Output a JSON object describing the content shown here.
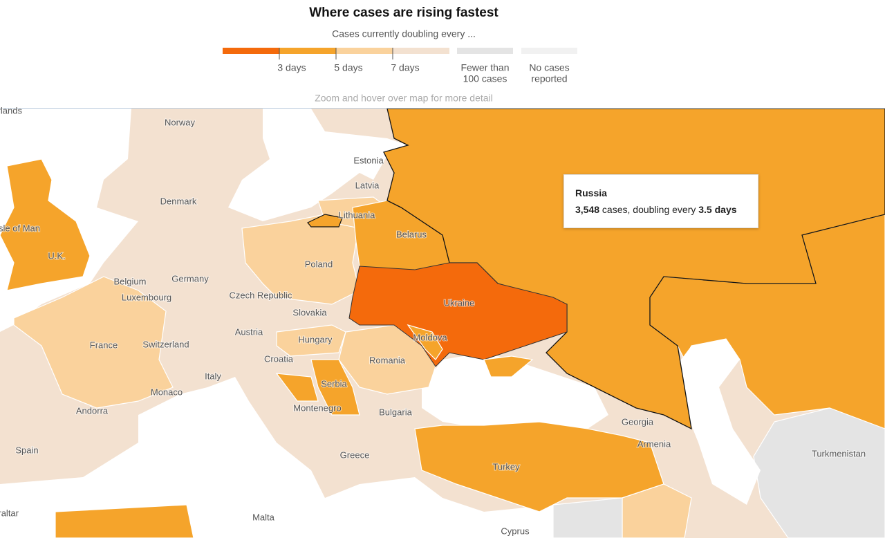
{
  "header": {
    "title": "Where cases are rising fastest",
    "subtitle": "Cases currently doubling every ...",
    "hint": "Zoom and hover over map for more detail"
  },
  "legend": {
    "colors": [
      "#f46a0c",
      "#f5a42b",
      "#fad29c",
      "#f3e1d0",
      "#e4e4e4",
      "#f1f1f1"
    ],
    "thresholds": [
      "3 days",
      "5 days",
      "7 days"
    ],
    "other": [
      [
        "Fewer than",
        "100 cases"
      ],
      [
        "No cases",
        "reported"
      ]
    ]
  },
  "labels": [
    "Netherlands",
    "Norway",
    "Estonia",
    "Latvia",
    "Denmark",
    "Lithuania",
    "Isle of Man",
    "Belarus",
    "U.K.",
    "Poland",
    "Belgium",
    "Germany",
    "Luxembourg",
    "Czech Republic",
    "Ukraine",
    "Slovakia",
    "Austria",
    "Hungary",
    "Moldova",
    "France",
    "Switzerland",
    "Croatia",
    "Romania",
    "Italy",
    "Serbia",
    "Monaco",
    "Andorra",
    "Montenegro",
    "Bulgaria",
    "Georgia",
    "Spain",
    "Armenia",
    "Greece",
    "Turkmenistan",
    "Turkey",
    "Gibraltar",
    "Malta",
    "Cyprus"
  ],
  "tooltip": {
    "title": "Russia",
    "cases": "3,548",
    "cases_text": " cases, doubling every ",
    "doubling": "3.5",
    "days": "days"
  }
}
